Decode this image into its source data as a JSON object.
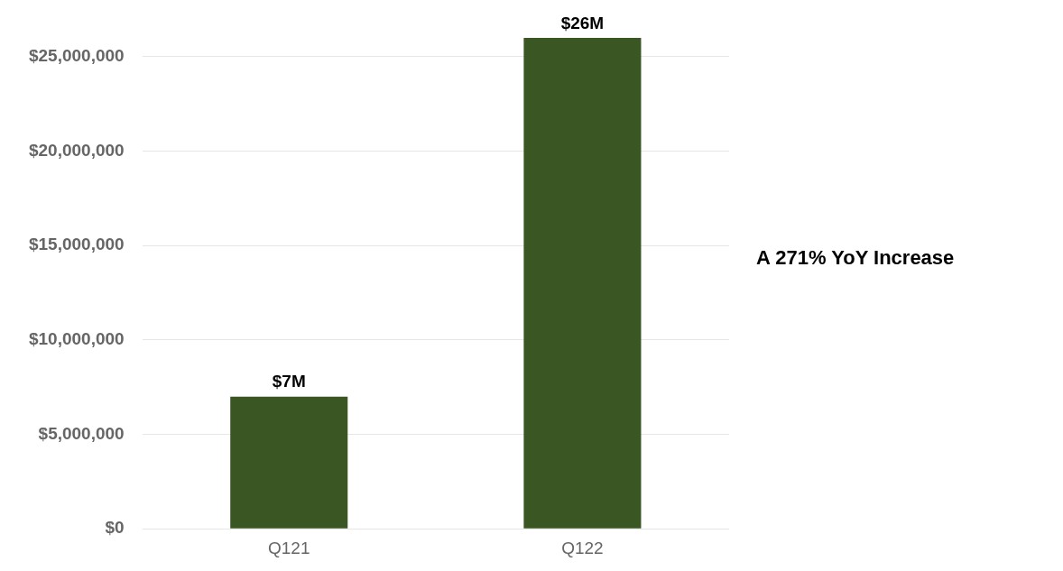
{
  "chart_data": {
    "type": "bar",
    "categories": [
      "Q121",
      "Q122"
    ],
    "values": [
      7000000,
      26000000
    ],
    "value_labels": [
      "$7M",
      "$26M"
    ],
    "color": "#3a5622",
    "ylim": [
      0,
      26000000
    ],
    "yticks": [
      {
        "value": 0,
        "label": "$0"
      },
      {
        "value": 5000000,
        "label": "$5,000,000"
      },
      {
        "value": 10000000,
        "label": "$10,000,000"
      },
      {
        "value": 15000000,
        "label": "$15,000,000"
      },
      {
        "value": 20000000,
        "label": "$20,000,000"
      },
      {
        "value": 25000000,
        "label": "$25,000,000"
      }
    ],
    "grid": "y",
    "annotations": [
      "A 271% YoY Increase"
    ]
  }
}
